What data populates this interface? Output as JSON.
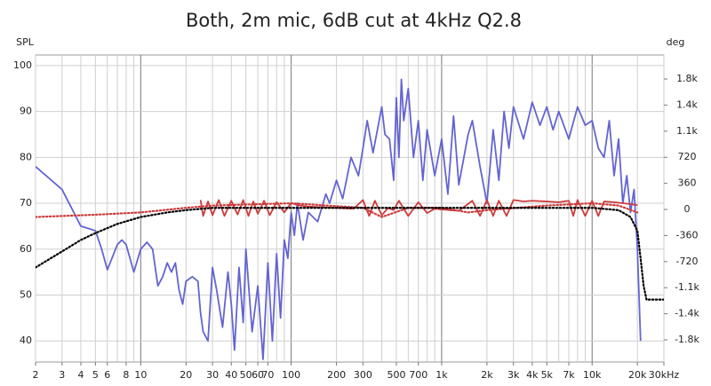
{
  "chart_data": {
    "type": "line",
    "title": "Both, 2m mic, 6dB cut at 4kHz Q2.8",
    "ylabel": "SPL",
    "y2label": "deg",
    "xscale": "log",
    "grid": true,
    "xlim": [
      2,
      30000
    ],
    "ylim": [
      35.4,
      102.3
    ],
    "y2lim": [
      -2106,
      2131
    ],
    "xticks": [
      2,
      3,
      4,
      5,
      6,
      8,
      10,
      20,
      30,
      40,
      50,
      60,
      70,
      100,
      200,
      300,
      500,
      700,
      {
        "value": 1000,
        "label": "1k"
      },
      {
        "value": 2000,
        "label": "2k"
      },
      {
        "value": 3000,
        "label": "3k"
      },
      {
        "value": 4000,
        "label": "4k"
      },
      {
        "value": 5000,
        "label": "5k"
      },
      {
        "value": 7000,
        "label": "7k"
      },
      {
        "value": 10000,
        "label": "10k"
      },
      {
        "value": 20000,
        "label": "20k"
      },
      {
        "value": 30000,
        "label": "30kHz"
      }
    ],
    "xgrid": [
      2,
      3,
      4,
      5,
      6,
      7,
      8,
      9,
      10,
      20,
      30,
      40,
      50,
      60,
      70,
      80,
      90,
      100,
      200,
      300,
      400,
      500,
      600,
      700,
      800,
      900,
      1000,
      2000,
      3000,
      4000,
      5000,
      6000,
      7000,
      8000,
      9000,
      10000,
      20000,
      30000
    ],
    "xmajor": [
      10,
      100,
      1000,
      10000
    ],
    "yticks": [
      40,
      50,
      60,
      70,
      80,
      90,
      100
    ],
    "y2ticks": [
      {
        "value": 1800,
        "label": "1.8k"
      },
      {
        "value": 1440,
        "label": "1.4k"
      },
      {
        "value": 1080,
        "label": "1.1k"
      },
      720,
      360,
      0,
      -360,
      -720,
      {
        "value": -1080,
        "label": "-1.1k"
      },
      {
        "value": -1440,
        "label": "-1.4k"
      },
      {
        "value": -1800,
        "label": "-1.8k"
      }
    ],
    "series": [
      {
        "color": "#6464d2",
        "style": "solid",
        "x": [
          2,
          3,
          4,
          4.5,
          5,
          5.5,
          6,
          7,
          7.5,
          8,
          9,
          10,
          11,
          12,
          13,
          14,
          15,
          16,
          17,
          18,
          19,
          20,
          22,
          24,
          25,
          26,
          28,
          30,
          32,
          35,
          38,
          40,
          42,
          45,
          48,
          50,
          55,
          60,
          65,
          70,
          75,
          80,
          85,
          90,
          95,
          100,
          105,
          110,
          120,
          130,
          150,
          170,
          180,
          200,
          220,
          250,
          280,
          300,
          320,
          350,
          400,
          420,
          450,
          480,
          500,
          520,
          540,
          560,
          600,
          650,
          700,
          750,
          800,
          900,
          1000,
          1100,
          1200,
          1300,
          1500,
          1600,
          1800,
          2000,
          2200,
          2400,
          2600,
          2800,
          3000,
          3500,
          4000,
          4500,
          5000,
          5500,
          6000,
          7000,
          8000,
          9000,
          10000,
          11000,
          12000,
          13000,
          14000,
          15000,
          16000,
          17000,
          18000,
          19000,
          20000,
          21000
        ],
        "values": [
          78,
          73,
          65,
          64.5,
          64,
          60,
          55.5,
          61,
          62,
          61,
          55,
          60,
          61.5,
          60,
          52,
          54,
          57,
          55,
          57,
          51,
          48,
          53,
          54,
          53,
          46,
          42,
          40,
          56,
          51,
          43,
          55,
          48,
          38,
          56,
          44,
          60,
          42,
          52,
          36,
          57,
          40,
          59,
          45,
          62,
          58,
          68,
          63,
          70,
          62,
          68,
          66,
          72,
          70,
          75,
          71,
          80,
          76,
          82,
          88,
          81,
          91,
          85,
          84,
          75,
          93,
          80,
          97,
          88,
          95,
          80,
          88,
          75,
          86,
          76,
          84,
          72,
          89,
          74,
          85,
          88,
          78,
          70,
          86,
          75,
          90,
          82,
          91,
          84,
          92,
          87,
          91,
          86,
          90,
          84,
          91,
          87,
          88,
          82,
          80,
          88,
          76,
          84,
          70,
          76,
          68,
          73,
          60,
          40
        ]
      },
      {
        "color": "#cc3c3c",
        "style": "solid",
        "axis": "y2",
        "x": [
          25,
          26,
          28,
          30,
          33,
          36,
          40,
          44,
          48,
          52,
          56,
          60,
          66,
          72,
          80,
          90,
          100,
          110,
          130,
          160,
          200,
          260,
          300,
          330,
          360,
          400,
          440,
          480,
          520,
          600,
          700,
          800,
          900,
          1000,
          1300,
          1600,
          1800,
          2000,
          2200,
          2400,
          2700,
          3000,
          3500,
          4000,
          5000,
          6000,
          7000,
          7500,
          8000,
          9000,
          10000,
          11000,
          12000,
          14000,
          17000,
          20000
        ],
        "values": [
          130,
          -90,
          110,
          -80,
          130,
          -90,
          120,
          -70,
          130,
          -90,
          110,
          -60,
          120,
          -80,
          100,
          -40,
          90,
          60,
          40,
          30,
          20,
          10,
          130,
          -90,
          120,
          -80,
          20,
          -10,
          120,
          -90,
          100,
          -50,
          10,
          0,
          -20,
          120,
          -90,
          130,
          -90,
          120,
          -90,
          130,
          110,
          120,
          110,
          100,
          120,
          -90,
          130,
          -90,
          120,
          -90,
          110,
          100,
          80,
          60
        ]
      },
      {
        "color": "#cc3c3c",
        "style": "dotted",
        "x": [
          2,
          5,
          10,
          20,
          30,
          100,
          300,
          400,
          600,
          1000,
          1500,
          2000,
          5000,
          10000,
          15000,
          20000
        ],
        "values": [
          67,
          67.5,
          68,
          69,
          69.5,
          70,
          69,
          67,
          69,
          69,
          68,
          68.5,
          69.5,
          70,
          69.5,
          68
        ]
      },
      {
        "color": "#000000",
        "style": "dotted",
        "x": [
          2,
          3,
          4,
          5,
          7,
          10,
          15,
          20,
          30,
          100,
          1000,
          10000,
          15000,
          18000,
          20000,
          21000,
          22000,
          23000,
          30000
        ],
        "values": [
          56,
          59.5,
          62,
          63.5,
          65.5,
          67,
          68,
          68.5,
          69,
          69,
          69,
          69,
          68.5,
          67,
          64,
          58,
          52,
          49,
          49
        ]
      }
    ]
  }
}
